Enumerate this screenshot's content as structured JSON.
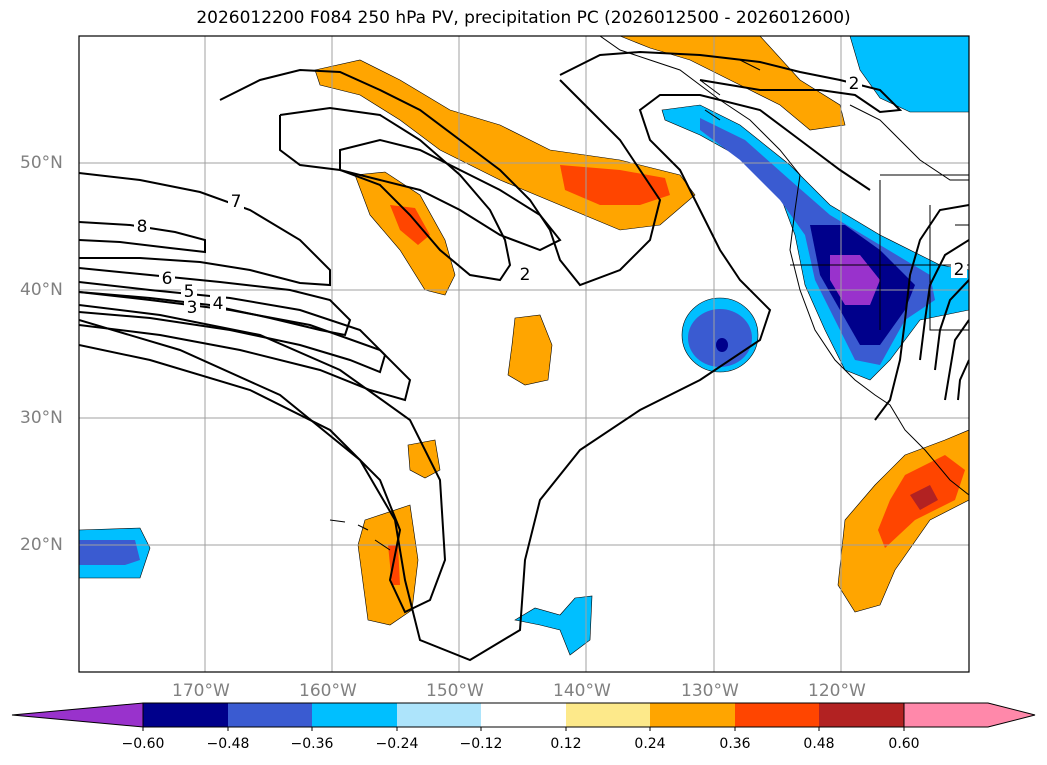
{
  "title": "2026012200 F084 250 hPa PV, precipitation PC (2026012500 - 2026012600)",
  "lat_labels": [
    "50°N",
    "40°N",
    "30°N",
    "20°N"
  ],
  "lon_labels": [
    "170°W",
    "160°W",
    "150°W",
    "140°W",
    "130°W",
    "120°W"
  ],
  "pv_contour_labels": [
    "8",
    "7",
    "6",
    "5",
    "4",
    "3",
    "2",
    "2",
    "2"
  ],
  "colorbar": {
    "ticks": [
      "−0.60",
      "−0.48",
      "−0.36",
      "−0.24",
      "−0.12",
      "0.12",
      "0.24",
      "0.36",
      "0.48",
      "0.60"
    ],
    "colors": [
      "#9932cc",
      "#00008b",
      "#3a5bd1",
      "#00bfff",
      "#ade4fb",
      "#ffffff",
      "#fde98a",
      "#ffa500",
      "#ff4500",
      "#b22222",
      "#ff88aa"
    ]
  }
}
